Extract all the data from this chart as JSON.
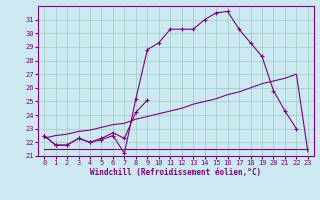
{
  "xlabel": "Windchill (Refroidissement éolien,°C)",
  "bg_color": "#cce8f0",
  "line_color": "#800080",
  "grid_color": "#99ccbb",
  "xlim": [
    -0.5,
    23.5
  ],
  "ylim": [
    21,
    32
  ],
  "yticks": [
    21,
    22,
    23,
    24,
    25,
    26,
    27,
    28,
    29,
    30,
    31
  ],
  "xticks": [
    0,
    1,
    2,
    3,
    4,
    5,
    6,
    7,
    8,
    9,
    10,
    11,
    12,
    13,
    14,
    15,
    16,
    17,
    18,
    19,
    20,
    21,
    22,
    23
  ],
  "curve1_x": [
    0,
    1,
    2,
    3,
    4,
    5,
    6,
    7,
    8,
    9,
    10,
    11,
    12,
    13,
    14,
    15,
    16,
    17,
    18,
    19,
    20,
    21,
    22
  ],
  "curve1_y": [
    22.5,
    21.8,
    21.8,
    22.3,
    22.0,
    22.2,
    22.5,
    21.2,
    25.2,
    28.8,
    29.3,
    30.3,
    30.3,
    30.3,
    31.0,
    31.5,
    31.6,
    30.3,
    29.3,
    28.3,
    25.8,
    24.3,
    23.0
  ],
  "curve2_x": [
    0,
    1,
    2,
    3,
    4,
    5,
    6,
    7,
    8,
    9
  ],
  "curve2_y": [
    22.5,
    21.8,
    21.8,
    22.3,
    22.0,
    22.3,
    22.7,
    22.3,
    24.2,
    25.1
  ],
  "curve3_x": [
    0,
    1,
    2,
    3,
    4,
    5,
    6,
    7,
    8,
    9,
    10,
    11,
    12,
    13,
    14,
    15,
    16,
    17,
    18,
    19,
    20,
    21,
    22,
    23
  ],
  "curve3_y": [
    22.3,
    22.5,
    22.6,
    22.8,
    22.9,
    23.1,
    23.3,
    23.4,
    23.7,
    23.9,
    24.1,
    24.3,
    24.5,
    24.8,
    25.0,
    25.2,
    25.5,
    25.7,
    26.0,
    26.3,
    26.5,
    26.7,
    27.0,
    21.3
  ],
  "curve4a_x": [
    0,
    1,
    2,
    3,
    4,
    5,
    6,
    7,
    8,
    9
  ],
  "curve4a_y": [
    21.5,
    21.5,
    21.5,
    21.5,
    21.5,
    21.5,
    21.5,
    21.5,
    21.5,
    21.5
  ],
  "curve4b_x": [
    9,
    10,
    11,
    12,
    13,
    14,
    15,
    16,
    17,
    18,
    19,
    20,
    21,
    22,
    23
  ],
  "curve4b_y": [
    21.5,
    21.5,
    21.5,
    21.5,
    21.5,
    21.5,
    21.5,
    21.5,
    21.5,
    21.5,
    21.5,
    21.5,
    21.5,
    21.5,
    21.5
  ]
}
